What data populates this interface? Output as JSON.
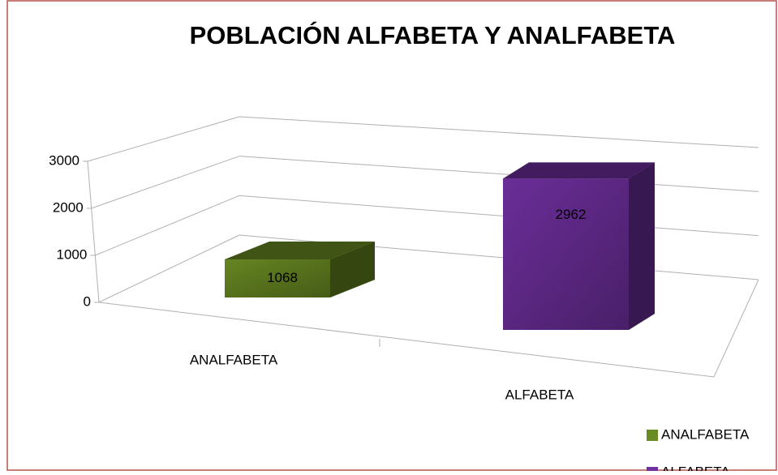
{
  "chart_data": {
    "type": "bar3d",
    "title": "POBLACIÓN ALFABETA Y ANALFABETA",
    "categories": [
      "ANALFABETA",
      "ALFABETA"
    ],
    "series": [
      {
        "name": "ANALFABETA",
        "color": "#6b8c23",
        "values": [
          1068,
          null
        ]
      },
      {
        "name": "ALFABETA",
        "color": "#7030a0",
        "values": [
          null,
          2962
        ]
      }
    ],
    "ylim": [
      0,
      3000
    ],
    "yticks": [
      0,
      1000,
      2000,
      3000
    ],
    "grid": true,
    "legend": "bottom-right"
  }
}
